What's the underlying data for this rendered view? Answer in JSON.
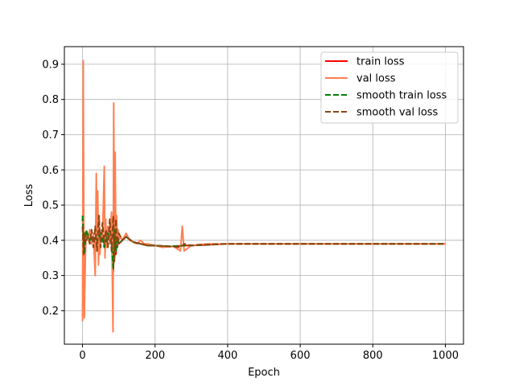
{
  "chart_data": {
    "type": "line",
    "title": "",
    "xlabel": "Epoch",
    "ylabel": "Loss",
    "xlim": [
      -50,
      1050
    ],
    "ylim": [
      0.105,
      0.95
    ],
    "xticks": [
      0,
      200,
      400,
      600,
      800,
      1000
    ],
    "yticks": [
      0.2,
      0.3,
      0.4,
      0.5,
      0.6,
      0.7,
      0.8,
      0.9
    ],
    "grid": true,
    "legend_position": "top-right",
    "series": [
      {
        "name": "train loss",
        "color": "#ff0000",
        "style": "solid",
        "x": [
          0,
          5,
          10,
          20,
          30,
          40,
          50,
          60,
          70,
          80,
          85,
          88,
          92,
          96,
          100,
          110,
          120,
          140,
          160,
          180,
          200,
          240,
          280,
          320,
          400,
          500,
          600,
          700,
          800,
          900,
          1000
        ],
        "y": [
          0.46,
          0.38,
          0.42,
          0.4,
          0.41,
          0.38,
          0.42,
          0.39,
          0.43,
          0.4,
          0.31,
          0.44,
          0.36,
          0.42,
          0.39,
          0.4,
          0.41,
          0.395,
          0.39,
          0.385,
          0.385,
          0.382,
          0.385,
          0.386,
          0.39,
          0.39,
          0.39,
          0.39,
          0.39,
          0.39,
          0.39
        ]
      },
      {
        "name": "val loss",
        "color": "#ff7f50",
        "style": "solid",
        "x": [
          0,
          1,
          2,
          3,
          4,
          5,
          6,
          8,
          10,
          15,
          20,
          25,
          30,
          35,
          38,
          40,
          42,
          44,
          46,
          48,
          50,
          55,
          60,
          62,
          64,
          66,
          70,
          75,
          80,
          84,
          86,
          88,
          90,
          92,
          94,
          96,
          98,
          100,
          105,
          110,
          120,
          130,
          140,
          150,
          160,
          170,
          180,
          200,
          220,
          250,
          270,
          275,
          280,
          300,
          320,
          350,
          400,
          500,
          600,
          700,
          800,
          900,
          1000
        ],
        "y": [
          0.17,
          0.5,
          0.91,
          0.6,
          0.3,
          0.18,
          0.24,
          0.36,
          0.42,
          0.4,
          0.43,
          0.39,
          0.42,
          0.3,
          0.59,
          0.37,
          0.54,
          0.33,
          0.47,
          0.36,
          0.42,
          0.4,
          0.61,
          0.35,
          0.46,
          0.38,
          0.44,
          0.39,
          0.48,
          0.14,
          0.79,
          0.36,
          0.65,
          0.37,
          0.47,
          0.38,
          0.43,
          0.4,
          0.41,
          0.4,
          0.42,
          0.4,
          0.395,
          0.39,
          0.4,
          0.39,
          0.39,
          0.385,
          0.38,
          0.383,
          0.37,
          0.44,
          0.37,
          0.385,
          0.388,
          0.39,
          0.39,
          0.39,
          0.39,
          0.39,
          0.39,
          0.39,
          0.39
        ]
      },
      {
        "name": "smooth train loss",
        "color": "#008000",
        "style": "dashed",
        "x": [
          0,
          5,
          10,
          20,
          30,
          40,
          50,
          60,
          70,
          80,
          85,
          88,
          92,
          96,
          100,
          110,
          120,
          140,
          160,
          180,
          200,
          240,
          280,
          320,
          400,
          500,
          600,
          700,
          800,
          900,
          1000
        ],
        "y": [
          0.47,
          0.36,
          0.43,
          0.4,
          0.41,
          0.4,
          0.42,
          0.38,
          0.42,
          0.39,
          0.32,
          0.43,
          0.37,
          0.41,
          0.39,
          0.4,
          0.41,
          0.395,
          0.39,
          0.385,
          0.385,
          0.383,
          0.385,
          0.386,
          0.39,
          0.39,
          0.39,
          0.39,
          0.39,
          0.39,
          0.39
        ]
      },
      {
        "name": "smooth val loss",
        "color": "#8b4513",
        "style": "dashed",
        "x": [
          0,
          3,
          6,
          10,
          15,
          20,
          25,
          30,
          35,
          40,
          45,
          50,
          55,
          60,
          65,
          70,
          75,
          80,
          85,
          88,
          92,
          96,
          100,
          110,
          120,
          140,
          160,
          180,
          200,
          240,
          270,
          280,
          300,
          320,
          400,
          500,
          600,
          700,
          800,
          900,
          1000
        ],
        "y": [
          0.44,
          0.36,
          0.42,
          0.4,
          0.41,
          0.39,
          0.43,
          0.38,
          0.44,
          0.37,
          0.47,
          0.38,
          0.45,
          0.39,
          0.43,
          0.38,
          0.46,
          0.37,
          0.47,
          0.34,
          0.46,
          0.38,
          0.42,
          0.4,
          0.41,
          0.395,
          0.39,
          0.385,
          0.385,
          0.383,
          0.38,
          0.39,
          0.385,
          0.387,
          0.39,
          0.39,
          0.39,
          0.39,
          0.39,
          0.39,
          0.39
        ]
      }
    ]
  }
}
